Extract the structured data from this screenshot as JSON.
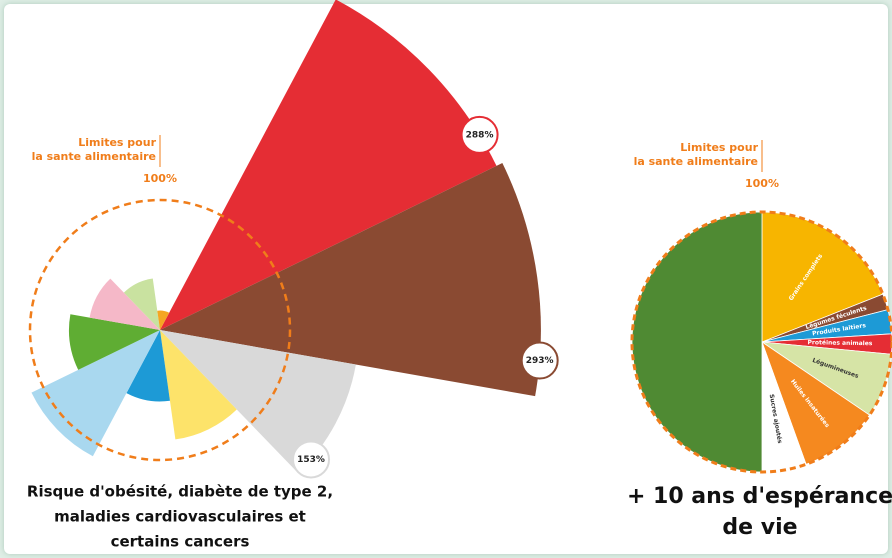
{
  "chart_data": [
    {
      "type": "rose",
      "annotation": [
        "Limites pour",
        "la sante alimentaire"
      ],
      "reference": {
        "value": 100,
        "label": "100%"
      },
      "values": [
        288,
        293,
        153,
        85,
        55,
        110,
        70,
        55,
        40,
        15
      ],
      "value_labels": [
        "288%",
        "293%",
        "153%",
        null,
        null,
        null,
        null,
        null,
        null,
        null
      ],
      "colors": [
        "#e52d34",
        "#8a4a32",
        "#d9d9d9",
        "#fde36a",
        "#1d9ad6",
        "#a9d8ef",
        "#5fad33",
        "#f5b8c8",
        "#c9e2a0",
        "#f5a623"
      ],
      "caption": [
        "Risque d'obésité, diabète de type 2,",
        "maladies cardiovasculaires et",
        "certains cancers"
      ]
    },
    {
      "type": "pie",
      "annotation": [
        "Limites pour",
        "la sante alimentaire"
      ],
      "reference": {
        "value": 100,
        "label": "100%"
      },
      "categories": [
        "Grains complets",
        "Légumes féculents",
        "Produits laitiers",
        "Protéines animales",
        "Légumineuses",
        "Huiles insaturées",
        "Sucres ajoutés",
        null
      ],
      "values": [
        19,
        2,
        3,
        2.5,
        8,
        10,
        5.5,
        50
      ],
      "colors": [
        "#f7b500",
        "#8a4a32",
        "#1d9ad6",
        "#e52d34",
        "#d6e4a6",
        "#f5891f",
        "#ffffff",
        "#4f8a33"
      ],
      "caption": [
        "+ 10 ans d'espérance",
        "de vie"
      ]
    }
  ]
}
